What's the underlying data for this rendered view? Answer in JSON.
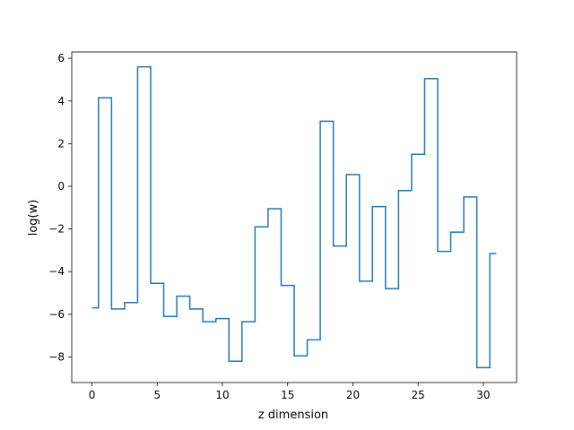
{
  "chart_data": {
    "type": "line",
    "drawstyle": "steps-mid",
    "xlabel": "z dimension",
    "ylabel": "log(w)",
    "xlim": [
      -1.55,
      32.55
    ],
    "ylim": [
      -9.2,
      6.3
    ],
    "xticks": [
      0,
      5,
      10,
      15,
      20,
      25,
      30
    ],
    "yticks": [
      -8,
      -6,
      -4,
      -2,
      0,
      2,
      4,
      6
    ],
    "grid": false,
    "series": [
      {
        "color": "#1f77b4",
        "x": [
          0,
          1,
          2,
          3,
          4,
          5,
          6,
          7,
          8,
          9,
          10,
          11,
          12,
          13,
          14,
          15,
          16,
          17,
          18,
          19,
          20,
          21,
          22,
          23,
          24,
          25,
          26,
          27,
          28,
          29,
          30,
          31
        ],
        "values": [
          -5.7,
          4.15,
          -5.75,
          -5.45,
          5.6,
          -4.55,
          -6.1,
          -5.15,
          -5.75,
          -6.35,
          -6.2,
          -8.2,
          -6.35,
          -1.9,
          -1.05,
          -4.65,
          -7.95,
          -7.2,
          3.05,
          -2.8,
          0.55,
          -4.45,
          -0.95,
          -4.8,
          -0.2,
          1.5,
          5.05,
          -3.05,
          -2.15,
          -0.5,
          -8.5,
          -3.15
        ]
      }
    ]
  }
}
